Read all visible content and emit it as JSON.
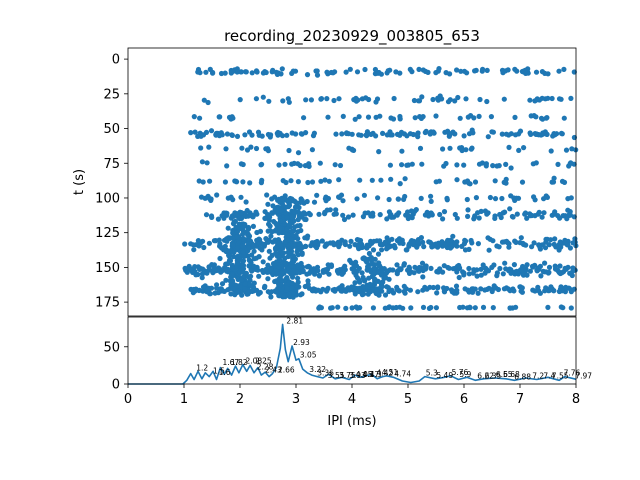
{
  "chart_data": [
    {
      "type": "scatter",
      "title": "recording_20230929_003805_653",
      "xlabel": "",
      "ylabel": "t (s)",
      "xlim": [
        0,
        8
      ],
      "ylim": [
        185,
        -8
      ],
      "y_inverted": true,
      "x_ticks_shown": false,
      "yticks": [
        0,
        25,
        50,
        75,
        100,
        125,
        150,
        175
      ],
      "ytick_labels": [
        "0",
        "25",
        "50",
        "75",
        "100",
        "125",
        "150",
        "175"
      ],
      "color": "#1f77b4",
      "marker": "circle",
      "bands": [
        {
          "t": 9,
          "spread": 3,
          "x_min": 1.2,
          "x_max": 8.0,
          "n": 100
        },
        {
          "t": 29,
          "spread": 3,
          "x_min": 1.3,
          "x_max": 8.0,
          "n": 55
        },
        {
          "t": 42,
          "spread": 2,
          "x_min": 1.1,
          "x_max": 8.0,
          "n": 40
        },
        {
          "t": 54,
          "spread": 3,
          "x_min": 1.1,
          "x_max": 8.0,
          "n": 120
        },
        {
          "t": 65,
          "spread": 3,
          "x_min": 1.2,
          "x_max": 8.0,
          "n": 35
        },
        {
          "t": 76,
          "spread": 3,
          "x_min": 1.3,
          "x_max": 8.0,
          "n": 45
        },
        {
          "t": 88,
          "spread": 3,
          "x_min": 1.0,
          "x_max": 8.0,
          "n": 45
        },
        {
          "t": 100,
          "spread": 4,
          "x_min": 1.3,
          "x_max": 8.0,
          "n": 60
        },
        {
          "t": 112,
          "spread": 5,
          "x_min": 1.4,
          "x_max": 8.0,
          "n": 130
        },
        {
          "t": 133,
          "spread": 6,
          "x_min": 1.0,
          "x_max": 8.0,
          "n": 260
        },
        {
          "t": 152,
          "spread": 6,
          "x_min": 1.0,
          "x_max": 8.0,
          "n": 300
        },
        {
          "t": 166,
          "spread": 4,
          "x_min": 1.1,
          "x_max": 8.0,
          "n": 200
        },
        {
          "t": 179,
          "spread": 1,
          "x_min": 3.2,
          "x_max": 8.0,
          "n": 40
        }
      ],
      "dense_clusters": [
        {
          "x_center": 2.85,
          "x_spread": 0.35,
          "t_min": 100,
          "t_max": 172,
          "n": 320
        },
        {
          "x_center": 2.0,
          "x_spread": 0.35,
          "t_min": 110,
          "t_max": 170,
          "n": 230
        },
        {
          "x_center": 4.3,
          "x_spread": 0.4,
          "t_min": 130,
          "t_max": 170,
          "n": 90
        }
      ]
    },
    {
      "type": "line",
      "title": "",
      "xlabel": "IPI (ms)",
      "ylabel": "",
      "xlim": [
        0,
        8
      ],
      "ylim": [
        0,
        90
      ],
      "xticks": [
        0,
        1,
        2,
        3,
        4,
        5,
        6,
        7,
        8
      ],
      "xtick_labels": [
        "0",
        "1",
        "2",
        "3",
        "4",
        "5",
        "6",
        "7",
        "8"
      ],
      "yticks": [
        0,
        50
      ],
      "ytick_labels": [
        "0",
        "50"
      ],
      "color": "#1f77b4",
      "x": [
        0,
        0.5,
        0.98,
        1.05,
        1.12,
        1.18,
        1.25,
        1.32,
        1.38,
        1.45,
        1.52,
        1.58,
        1.65,
        1.72,
        1.78,
        1.85,
        1.92,
        1.98,
        2.05,
        2.12,
        2.18,
        2.25,
        2.32,
        2.38,
        2.45,
        2.52,
        2.58,
        2.65,
        2.72,
        2.76,
        2.81,
        2.86,
        2.93,
        3.0,
        3.05,
        3.12,
        3.2,
        3.28,
        3.38,
        3.48,
        3.58,
        3.7,
        3.82,
        3.95,
        4.05,
        4.15,
        4.25,
        4.35,
        4.45,
        4.55,
        4.62,
        4.74,
        4.9,
        5.05,
        5.2,
        5.3,
        5.49,
        5.65,
        5.76,
        5.9,
        6.05,
        6.2,
        6.35,
        6.55,
        6.75,
        6.9,
        7.1,
        7.3,
        7.5,
        7.7,
        7.8,
        7.97,
        8.0
      ],
      "y": [
        0,
        0,
        0,
        5,
        14,
        6,
        17,
        7,
        15,
        10,
        17,
        6,
        22,
        13,
        21,
        12,
        24,
        15,
        26,
        17,
        25,
        15,
        22,
        12,
        16,
        10,
        14,
        22,
        48,
        80,
        46,
        30,
        51,
        32,
        34,
        20,
        15,
        12,
        10,
        8,
        13,
        7,
        9,
        6,
        12,
        9,
        11,
        13,
        7,
        10,
        11,
        9,
        4,
        2,
        4,
        10,
        7,
        9,
        11,
        6,
        9,
        5,
        7,
        8,
        7,
        5,
        8,
        6,
        9,
        5,
        10,
        7,
        6
      ],
      "peak_labels": [
        {
          "x": 1.2,
          "y": 17,
          "label": "1.2"
        },
        {
          "x": 1.5,
          "y": 13,
          "label": "1.5"
        },
        {
          "x": 1.6,
          "y": 11,
          "label": "1.6"
        },
        {
          "x": 1.67,
          "y": 24,
          "label": "1.67"
        },
        {
          "x": 1.82,
          "y": 24,
          "label": "1.82"
        },
        {
          "x": 2.08,
          "y": 26,
          "label": "2.08"
        },
        {
          "x": 2.25,
          "y": 26,
          "label": "2.25"
        },
        {
          "x": 2.28,
          "y": 18,
          "label": "2.28"
        },
        {
          "x": 2.43,
          "y": 14,
          "label": "2.43"
        },
        {
          "x": 2.66,
          "y": 14,
          "label": "2.66"
        },
        {
          "x": 2.81,
          "y": 80,
          "label": "2.81"
        },
        {
          "x": 2.93,
          "y": 51,
          "label": "2.93"
        },
        {
          "x": 3.05,
          "y": 34,
          "label": "3.05"
        },
        {
          "x": 3.22,
          "y": 15,
          "label": "3.22"
        },
        {
          "x": 3.36,
          "y": 10,
          "label": "3.36"
        },
        {
          "x": 3.55,
          "y": 7,
          "label": "3.55"
        },
        {
          "x": 3.75,
          "y": 7,
          "label": "3.75"
        },
        {
          "x": 3.93,
          "y": 7,
          "label": "3.93"
        },
        {
          "x": 4.05,
          "y": 8,
          "label": "4.05"
        },
        {
          "x": 4.17,
          "y": 8,
          "label": "4.17"
        },
        {
          "x": 4.3,
          "y": 8,
          "label": "4.3"
        },
        {
          "x": 4.42,
          "y": 10,
          "label": "4.42"
        },
        {
          "x": 4.51,
          "y": 11,
          "label": "4.51"
        },
        {
          "x": 4.74,
          "y": 9,
          "label": "4.74"
        },
        {
          "x": 5.3,
          "y": 10,
          "label": "5.3"
        },
        {
          "x": 5.49,
          "y": 7,
          "label": "5.49"
        },
        {
          "x": 5.76,
          "y": 11,
          "label": "5.76"
        },
        {
          "x": 5.9,
          "y": 8,
          "label": "5.9"
        },
        {
          "x": 6.22,
          "y": 6,
          "label": "6.22"
        },
        {
          "x": 6.35,
          "y": 6,
          "label": "6.35"
        },
        {
          "x": 6.55,
          "y": 8,
          "label": "6.55"
        },
        {
          "x": 6.68,
          "y": 8,
          "label": "6.68"
        },
        {
          "x": 6.88,
          "y": 5,
          "label": "6.88"
        },
        {
          "x": 7.2,
          "y": 6,
          "label": "7.2"
        },
        {
          "x": 7.4,
          "y": 6,
          "label": "7.4"
        },
        {
          "x": 7.55,
          "y": 6,
          "label": "7.55"
        },
        {
          "x": 7.76,
          "y": 10,
          "label": "7.76"
        },
        {
          "x": 7.97,
          "y": 6,
          "label": "7.97"
        }
      ]
    }
  ]
}
